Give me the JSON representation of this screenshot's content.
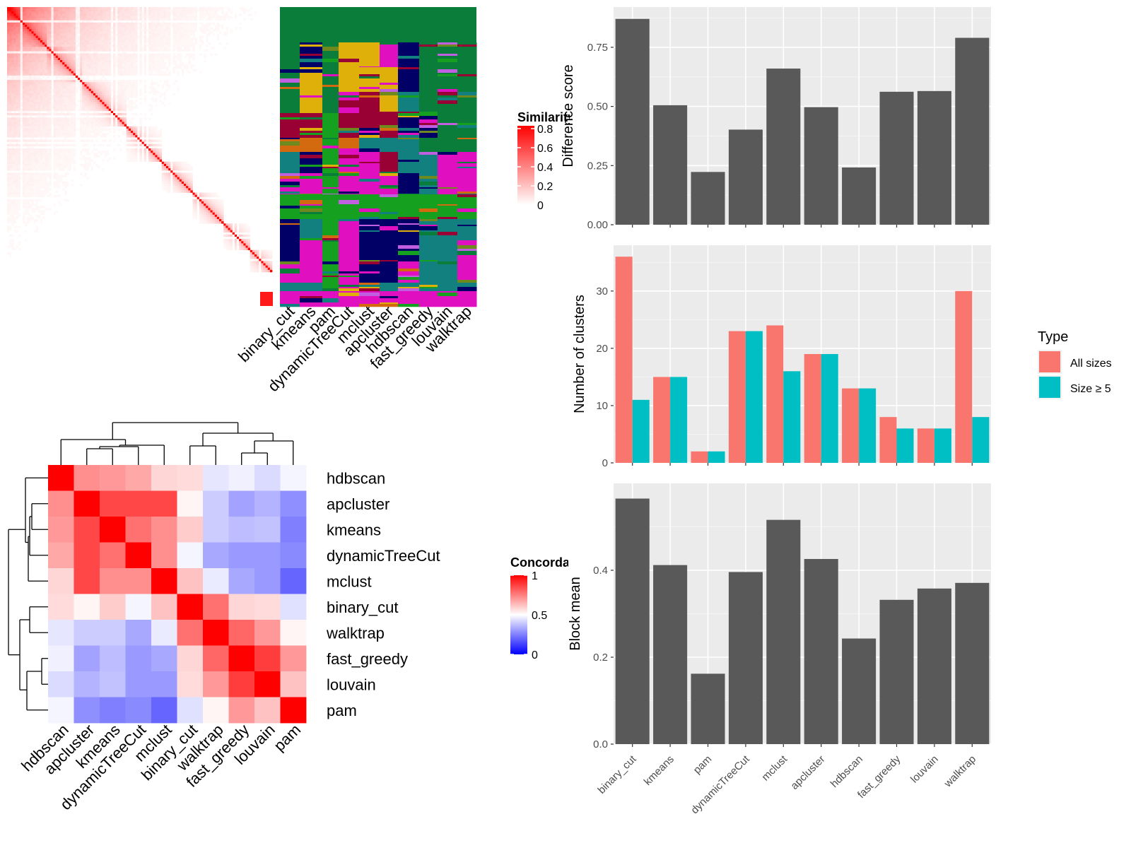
{
  "methods": [
    "binary_cut",
    "kmeans",
    "pam",
    "dynamicTreeCut",
    "mclust",
    "apcluster",
    "hdbscan",
    "fast_greedy",
    "louvain",
    "walktrap"
  ],
  "chart_data": [
    {
      "type": "heatmap",
      "name": "similarity",
      "legend_title": "Similarity",
      "legend_ticks": [
        "0",
        "0.2",
        "0.4",
        "0.6",
        "0.8"
      ],
      "column_labels": [
        "binary_cut",
        "kmeans",
        "pam",
        "dynamicTreeCut",
        "mclust",
        "apcluster",
        "hdbscan",
        "fast_greedy",
        "louvain",
        "walktrap"
      ],
      "scale": [
        0,
        0.8
      ]
    },
    {
      "type": "heatmap",
      "name": "concordance",
      "legend_title": "Concordance",
      "legend_ticks": [
        "0",
        "0.5",
        "1"
      ],
      "scale": [
        0,
        1
      ],
      "row_labels": [
        "hdbscan",
        "apcluster",
        "kmeans",
        "dynamicTreeCut",
        "mclust",
        "binary_cut",
        "walktrap",
        "fast_greedy",
        "louvain",
        "pam"
      ],
      "values": [
        [
          1.0,
          0.72,
          0.7,
          0.67,
          0.58,
          0.57,
          0.45,
          0.47,
          0.43,
          0.48
        ],
        [
          0.72,
          1.0,
          0.86,
          0.86,
          0.86,
          0.52,
          0.4,
          0.32,
          0.35,
          0.28
        ],
        [
          0.7,
          0.86,
          1.0,
          0.78,
          0.72,
          0.6,
          0.4,
          0.37,
          0.38,
          0.25
        ],
        [
          0.67,
          0.86,
          0.78,
          1.0,
          0.72,
          0.48,
          0.33,
          0.3,
          0.3,
          0.27
        ],
        [
          0.58,
          0.86,
          0.72,
          0.72,
          1.0,
          0.62,
          0.46,
          0.33,
          0.3,
          0.2
        ],
        [
          0.57,
          0.52,
          0.6,
          0.48,
          0.62,
          1.0,
          0.78,
          0.58,
          0.57,
          0.44
        ],
        [
          0.45,
          0.4,
          0.4,
          0.33,
          0.46,
          0.78,
          1.0,
          0.8,
          0.7,
          0.52
        ],
        [
          0.47,
          0.32,
          0.37,
          0.3,
          0.33,
          0.58,
          0.8,
          1.0,
          0.88,
          0.7
        ],
        [
          0.43,
          0.35,
          0.38,
          0.3,
          0.3,
          0.57,
          0.7,
          0.88,
          1.0,
          0.62
        ],
        [
          0.48,
          0.28,
          0.25,
          0.27,
          0.2,
          0.44,
          0.52,
          0.7,
          0.62,
          1.0
        ]
      ]
    },
    {
      "type": "bar",
      "name": "difference",
      "ylabel": "Difference score",
      "categories": [
        "binary_cut",
        "kmeans",
        "pam",
        "dynamicTreeCut",
        "mclust",
        "apcluster",
        "hdbscan",
        "fast_greedy",
        "louvain",
        "walktrap"
      ],
      "values": [
        0.87,
        0.505,
        0.223,
        0.402,
        0.66,
        0.497,
        0.242,
        0.562,
        0.565,
        0.79
      ],
      "ylim": [
        0,
        0.92
      ],
      "yticks": [
        "0.00",
        "0.25",
        "0.50",
        "0.75"
      ],
      "grid": true
    },
    {
      "type": "bar",
      "name": "clusters",
      "ylabel": "Number of clusters",
      "categories": [
        "binary_cut",
        "kmeans",
        "pam",
        "dynamicTreeCut",
        "mclust",
        "apcluster",
        "hdbscan",
        "fast_greedy",
        "louvain",
        "walktrap"
      ],
      "series": [
        {
          "name": "All sizes",
          "color": "#F8766D",
          "values": [
            36,
            15,
            2,
            23,
            24,
            19,
            13,
            8,
            6,
            30
          ]
        },
        {
          "name": "Size ≥ 5",
          "color": "#00BFC4",
          "values": [
            11,
            15,
            2,
            23,
            16,
            19,
            13,
            6,
            6,
            8
          ]
        }
      ],
      "ylim": [
        0,
        38
      ],
      "yticks": [
        "0",
        "10",
        "20",
        "30"
      ],
      "legend_title": "Type",
      "legend_position": "right",
      "grid": true
    },
    {
      "type": "bar",
      "name": "blockmean",
      "ylabel": "Block mean",
      "categories": [
        "binary_cut",
        "kmeans",
        "pam",
        "dynamicTreeCut",
        "mclust",
        "apcluster",
        "hdbscan",
        "fast_greedy",
        "louvain",
        "walktrap"
      ],
      "values": [
        0.565,
        0.412,
        0.162,
        0.396,
        0.516,
        0.426,
        0.243,
        0.332,
        0.358,
        0.371
      ],
      "ylim": [
        0,
        0.6
      ],
      "yticks": [
        "0.0",
        "0.2",
        "0.4"
      ],
      "grid": true
    }
  ]
}
